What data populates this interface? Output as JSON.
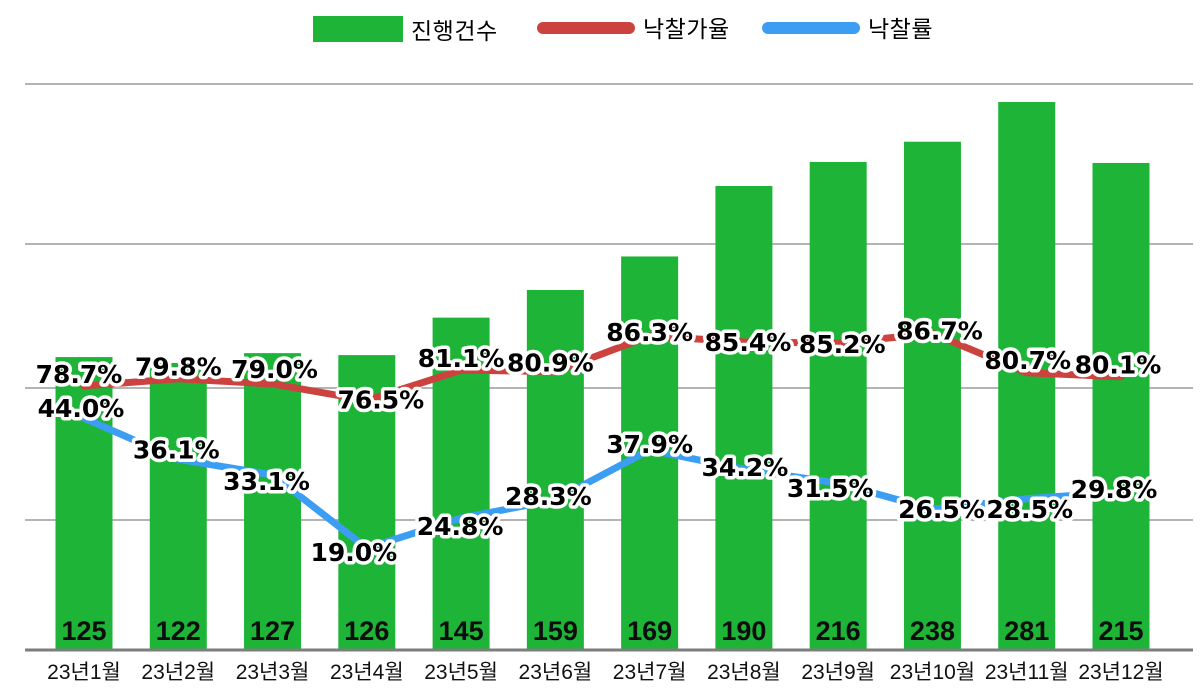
{
  "legend": {
    "items": [
      {
        "label": "진행건수",
        "color": "#1eb438",
        "shape": "rect"
      },
      {
        "label": "낙찰가율",
        "color": "#cb423e",
        "shape": "line"
      },
      {
        "label": "낙찰률",
        "color": "#3b9ef3",
        "shape": "line"
      }
    ]
  },
  "chart_data": {
    "type": "bar",
    "title": "",
    "categories": [
      "23년1월",
      "23년2월",
      "23년3월",
      "23년4월",
      "23년5월",
      "23년6월",
      "23년7월",
      "23년8월",
      "23년9월",
      "23년10월",
      "23년11월",
      "23년12월"
    ],
    "series": [
      {
        "name": "진행건수",
        "type": "bar",
        "color": "#1eb438",
        "values": [
          125,
          122,
          127,
          126,
          145,
          159,
          169,
          190,
          216,
          238,
          281,
          215
        ],
        "labels": [
          "125",
          "122",
          "127",
          "126",
          "145",
          "159",
          "169",
          "190",
          "216",
          "238",
          "281",
          "215"
        ]
      },
      {
        "name": "낙찰가율",
        "type": "line",
        "color": "#cb423e",
        "unit": "%",
        "values": [
          78.7,
          79.8,
          79.0,
          76.5,
          81.1,
          80.9,
          86.3,
          85.4,
          85.2,
          86.7,
          80.7,
          80.1
        ],
        "labels": [
          "78.7%",
          "79.8%",
          "79.0%",
          "76.5%",
          "81.1%",
          "80.9%",
          "86.3%",
          "85.4%",
          "85.2%",
          "86.7%",
          "80.7%",
          "80.1%"
        ]
      },
      {
        "name": "낙찰률",
        "type": "line",
        "color": "#3b9ef3",
        "unit": "%",
        "values": [
          44.0,
          36.1,
          33.1,
          19.0,
          24.8,
          28.3,
          37.9,
          34.2,
          31.5,
          26.5,
          28.5,
          29.8
        ],
        "labels": [
          "44.0%",
          "36.1%",
          "33.1%",
          "19.0%",
          "24.8%",
          "28.3%",
          "37.9%",
          "34.2%",
          "31.5%",
          "26.5%",
          "28.5%",
          "29.8%"
        ]
      }
    ],
    "grid": true,
    "legend_position": "top",
    "xlabel": "",
    "ylabel": ""
  },
  "colors": {
    "background": "#ffffff",
    "gridline": "#9b9b9b",
    "axis": "#7d7d7d",
    "label": "#000000"
  }
}
